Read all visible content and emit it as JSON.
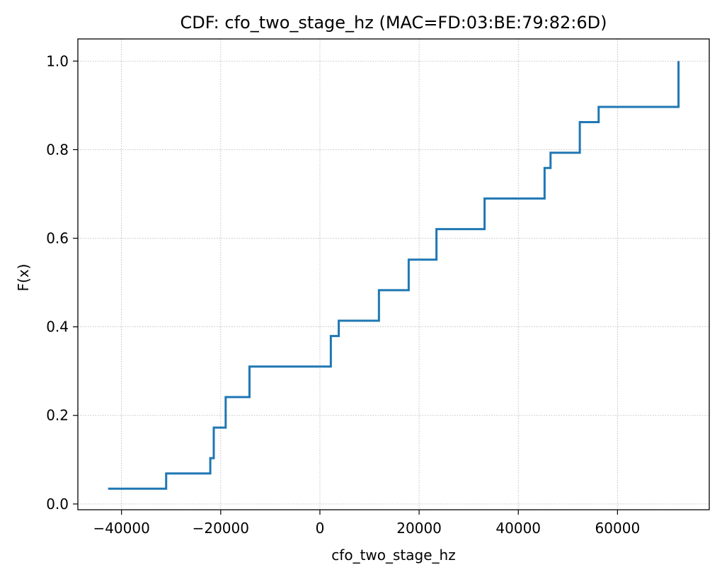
{
  "chart_data": {
    "type": "line",
    "subtype": "step-cdf",
    "title": "CDF: cfo_two_stage_hz (MAC=FD:03:BE:79:82:6D)",
    "xlabel": "cfo_two_stage_hz",
    "ylabel": "F(x)",
    "xlim": [
      -48800,
      78500
    ],
    "ylim": [
      -0.013,
      1.05
    ],
    "xticks": [
      -40000,
      -20000,
      0,
      20000,
      40000,
      60000
    ],
    "xtick_labels": [
      "−40000",
      "−20000",
      "0",
      "20000",
      "40000",
      "60000"
    ],
    "yticks": [
      0.0,
      0.2,
      0.4,
      0.6,
      0.8,
      1.0
    ],
    "ytick_labels": [
      "0.0",
      "0.2",
      "0.4",
      "0.6",
      "0.8",
      "1.0"
    ],
    "grid": true,
    "color": "#1f77b4",
    "series": [
      {
        "x": [
          -42700,
          -31000,
          -22100,
          -21400,
          -19000,
          -14200,
          2200,
          3800,
          11900,
          17900,
          23500,
          33200,
          45300,
          46500,
          52400,
          56200,
          72300
        ],
        "y": [
          0.0345,
          0.069,
          0.1034,
          0.1724,
          0.2414,
          0.3103,
          0.3793,
          0.4138,
          0.4828,
          0.5517,
          0.6207,
          0.6897,
          0.7586,
          0.7931,
          0.8621,
          0.8966,
          0.931
        ],
        "y_end": 1.0
      }
    ]
  }
}
